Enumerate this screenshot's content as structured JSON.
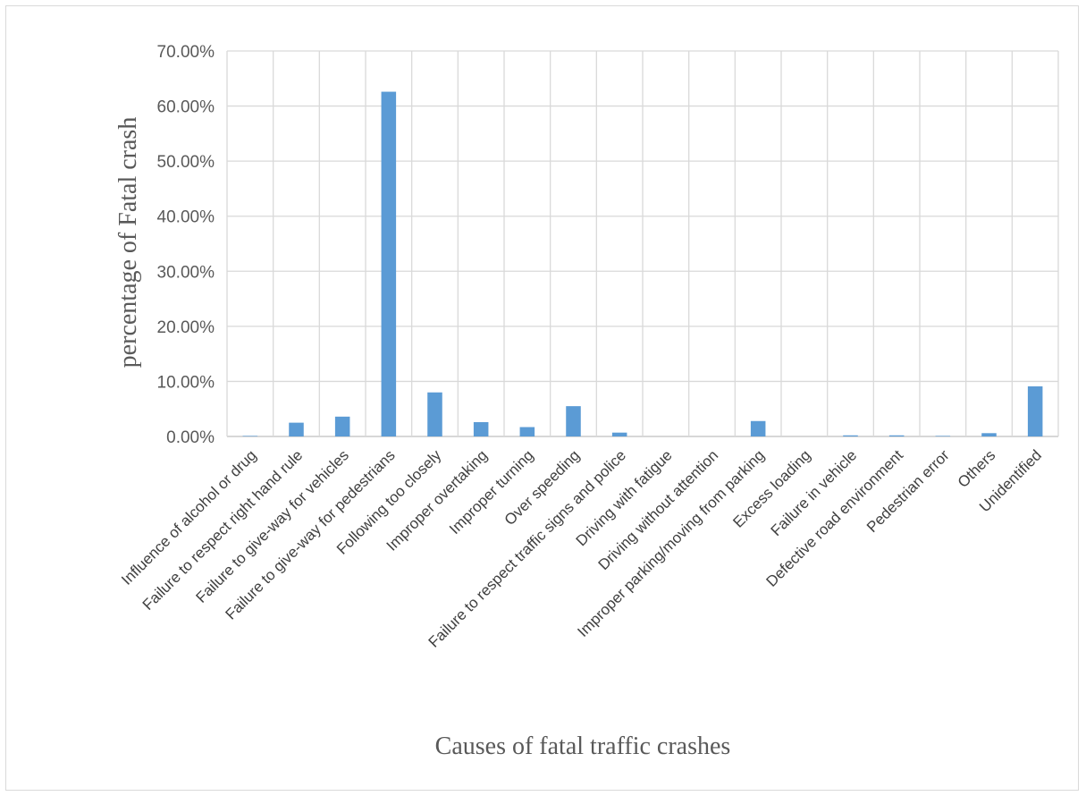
{
  "chart_data": {
    "type": "bar",
    "title": "",
    "xlabel": "Causes of fatal traffic crashes",
    "ylabel": "percentage of Fatal crash",
    "ylim": [
      0,
      0.7
    ],
    "yticks": [
      "0.00%",
      "10.00%",
      "20.00%",
      "30.00%",
      "40.00%",
      "50.00%",
      "60.00%",
      "70.00%"
    ],
    "grid": "vertical and horizontal gridlines",
    "legend": "none",
    "bar_color": "#5B9BD5",
    "categories": [
      "Influence of alcohol or drug",
      "Failure to respect right hand rule",
      "Failure to give-way for vehicles",
      "Failure to give-way for pedestrians",
      "Following too closely",
      "Improper overtaking",
      "Improper turning",
      "Over speeding",
      "Failure to respect traffic signs and police",
      "Driving with fatigue",
      "Driving without attention",
      "Improper parking/moving from parking",
      "Excess loading",
      "Failure in vehicle",
      "Defective road environment",
      "Pedestrian error",
      "Others",
      "Unidentified"
    ],
    "values": [
      0.001,
      0.025,
      0.036,
      0.626,
      0.08,
      0.026,
      0.017,
      0.055,
      0.007,
      0.0,
      0.0,
      0.028,
      0.0,
      0.002,
      0.002,
      0.001,
      0.006,
      0.091
    ]
  }
}
